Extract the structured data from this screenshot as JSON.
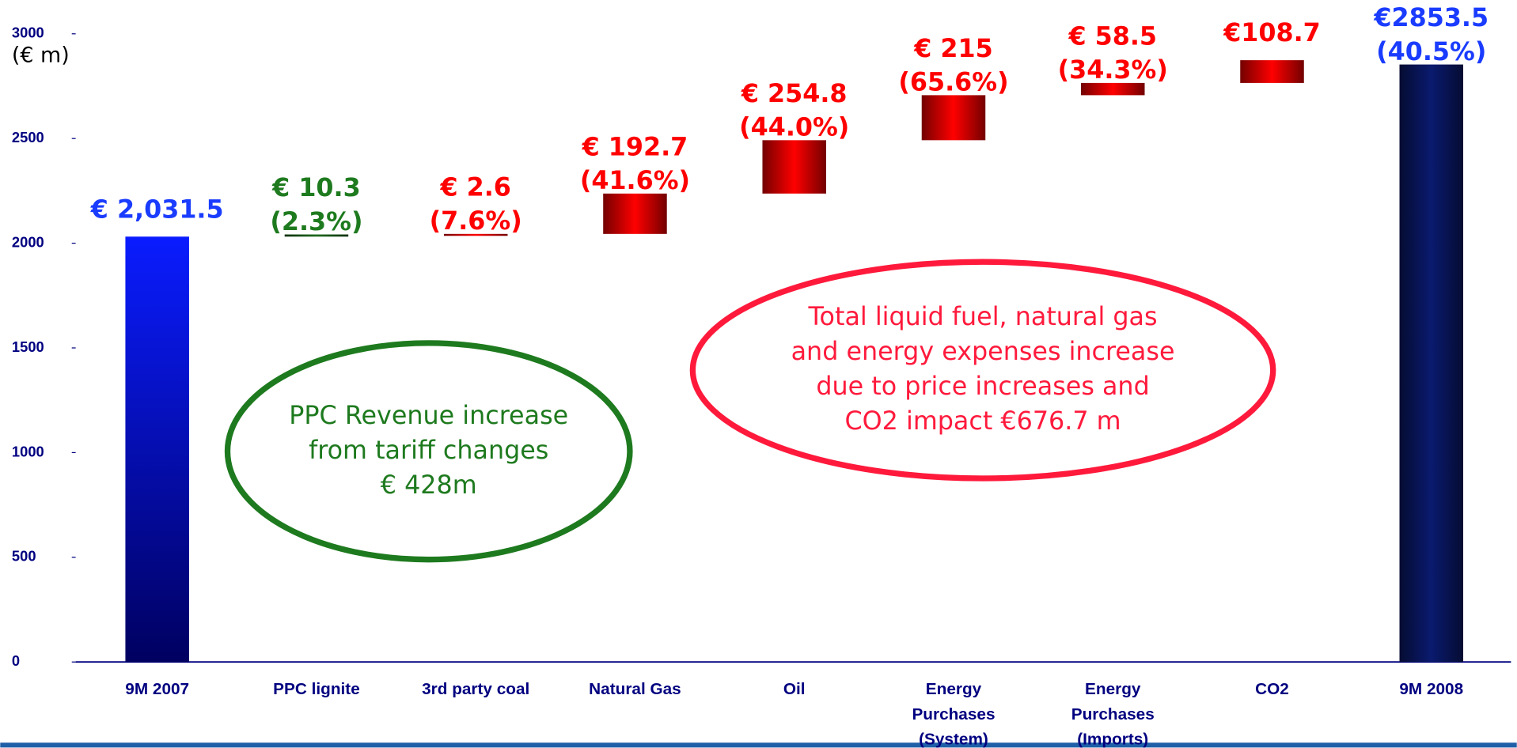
{
  "chart_data": {
    "type": "waterfall",
    "y_label": "(€ m)",
    "categories": [
      [
        "9M 2007"
      ],
      [
        "PPC lignite"
      ],
      [
        "3rd party coal"
      ],
      [
        "Natural Gas"
      ],
      [
        "Oil"
      ],
      [
        "Energy",
        "Purchases",
        "(System)"
      ],
      [
        "Energy",
        "Purchases",
        "(Imports)"
      ],
      [
        "CO2"
      ],
      [
        "9M 2008"
      ]
    ],
    "measures": [
      "absolute",
      "relative",
      "relative",
      "relative",
      "relative",
      "relative",
      "relative",
      "relative",
      "absolute"
    ],
    "values": [
      2031.5,
      10.3,
      2.6,
      192.7,
      254.8,
      215,
      58.5,
      108.7,
      2853.5
    ],
    "value_labels": [
      "€ 2,031.5",
      "€ 10.3",
      "€ 2.6",
      "€ 192.7",
      "€ 254.8",
      "€ 215",
      "€ 58.5",
      "€108.7",
      "€2853.5"
    ],
    "pct_labels": [
      null,
      "(2.3%)",
      "(7.6%)",
      "(41.6%)",
      "(44.0%)",
      "(65.6%)",
      "(34.3%)",
      null,
      "(40.5%)"
    ],
    "colors": [
      "#0a1cff",
      "#1e6b1e",
      "#ff0000",
      "#ff0000",
      "#ff0000",
      "#ff0000",
      "#ff0000",
      "#ff0000",
      "#0a1a6e"
    ],
    "label_colors": [
      "#1a3cff",
      "#1e7a1e",
      "#ff0000",
      "#ff0000",
      "#ff0000",
      "#ff0000",
      "#ff0000",
      "#ff0000",
      "#1a3cff"
    ],
    "ylim": [
      0,
      3000
    ],
    "yticks": [
      0,
      500,
      1000,
      1500,
      2000,
      2500,
      3000
    ],
    "annotations": [
      {
        "lines": [
          "PPC Revenue increase",
          "from tariff changes",
          "€ 428m"
        ],
        "color": "#1e7a1e"
      },
      {
        "lines": [
          "Total liquid fuel, natural gas",
          "and energy expenses increase",
          "due to price increases and",
          "CO2 impact €676.7 m"
        ],
        "color": "#ff1a3c"
      }
    ]
  }
}
